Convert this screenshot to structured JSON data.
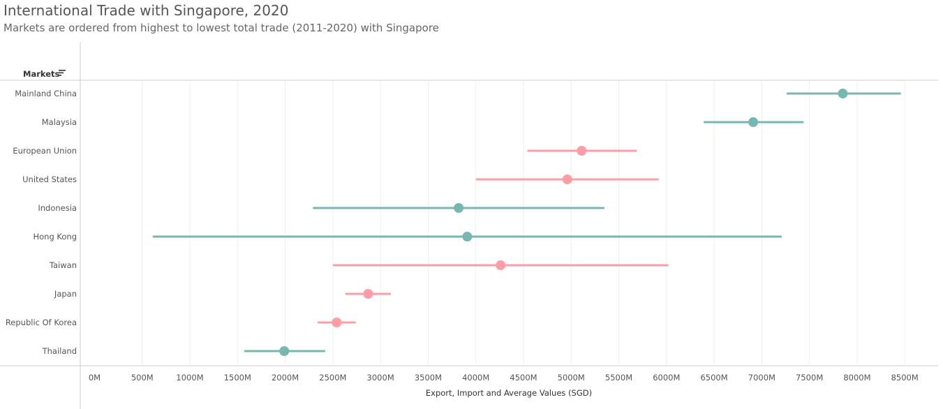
{
  "title": "International Trade with Singapore, 2020",
  "subtitle": "Markets are ordered from highest to lowest total trade (2011-2020) with Singapore",
  "row_header": {
    "label": "Markets",
    "icon": "sort-descending-icon"
  },
  "colors": {
    "teal": "#76b7b2",
    "pink": "#ff9da7",
    "gridline": "#eeeeee",
    "axis": "#cccccc"
  },
  "chart_data": {
    "type": "dumbbell",
    "xlabel": "Export, Import and Average Values (SGD)",
    "xlim": [
      -150,
      8850
    ],
    "xticks": [
      {
        "value": 0,
        "label": "0M"
      },
      {
        "value": 500,
        "label": "500M"
      },
      {
        "value": 1000,
        "label": "1000M"
      },
      {
        "value": 1500,
        "label": "1500M"
      },
      {
        "value": 2000,
        "label": "2000M"
      },
      {
        "value": 2500,
        "label": "2500M"
      },
      {
        "value": 3000,
        "label": "3000M"
      },
      {
        "value": 3500,
        "label": "3500M"
      },
      {
        "value": 4000,
        "label": "4000M"
      },
      {
        "value": 4500,
        "label": "4500M"
      },
      {
        "value": 5000,
        "label": "5000M"
      },
      {
        "value": 5500,
        "label": "5500M"
      },
      {
        "value": 6000,
        "label": "6000M"
      },
      {
        "value": 6500,
        "label": "6500M"
      },
      {
        "value": 7000,
        "label": "7000M"
      },
      {
        "value": 7500,
        "label": "7500M"
      },
      {
        "value": 8000,
        "label": "8000M"
      },
      {
        "value": 8500,
        "label": "8500M"
      }
    ],
    "unit": "M SGD",
    "grid": true,
    "rows": [
      {
        "market": "Mainland China",
        "low": 7270,
        "high": 8450,
        "avg": 7850,
        "color": "teal"
      },
      {
        "market": "Malaysia",
        "low": 6400,
        "high": 7430,
        "avg": 6910,
        "color": "teal"
      },
      {
        "market": "European Union",
        "low": 4550,
        "high": 5680,
        "avg": 5110,
        "color": "pink"
      },
      {
        "market": "United States",
        "low": 4010,
        "high": 5910,
        "avg": 4960,
        "color": "pink"
      },
      {
        "market": "Indonesia",
        "low": 2300,
        "high": 5340,
        "avg": 3820,
        "color": "teal"
      },
      {
        "market": "Hong Kong",
        "low": 620,
        "high": 7200,
        "avg": 3910,
        "color": "teal"
      },
      {
        "market": "Taiwan",
        "low": 2510,
        "high": 6010,
        "avg": 4260,
        "color": "pink"
      },
      {
        "market": "Japan",
        "low": 2640,
        "high": 3100,
        "avg": 2870,
        "color": "pink"
      },
      {
        "market": "Republic Of Korea",
        "low": 2350,
        "high": 2730,
        "avg": 2540,
        "color": "pink"
      },
      {
        "market": "Thailand",
        "low": 1580,
        "high": 2410,
        "avg": 1990,
        "color": "teal"
      }
    ]
  }
}
